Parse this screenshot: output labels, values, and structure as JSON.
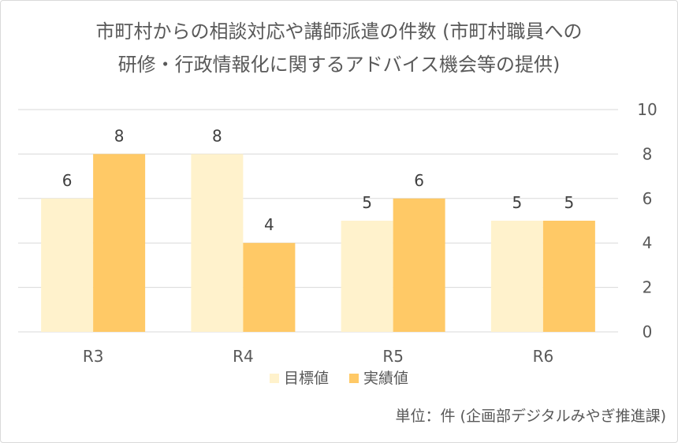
{
  "chart_data": {
    "type": "bar",
    "title_lines": [
      "市町村からの相談対応や講師派遣の件数 (市町村職員への",
      "研修・行政情報化に関するアドバイス機会等の提供)"
    ],
    "categories": [
      "R3",
      "R4",
      "R5",
      "R6"
    ],
    "series": [
      {
        "name": "目標値",
        "values": [
          6,
          8,
          5,
          5
        ],
        "color": "#fff2cc"
      },
      {
        "name": "実績値",
        "values": [
          8,
          4,
          6,
          5
        ],
        "color": "#ffc966"
      }
    ],
    "y_axis": {
      "position": "right",
      "min": 0,
      "max": 10,
      "step": 2,
      "ticks": [
        "0",
        "2",
        "4",
        "6",
        "8",
        "10"
      ]
    },
    "grid": true,
    "data_labels": true,
    "legend_position": "bottom"
  },
  "footer": {
    "unit_note": "単位：件 (企画部デジタルみやぎ推進課)"
  }
}
